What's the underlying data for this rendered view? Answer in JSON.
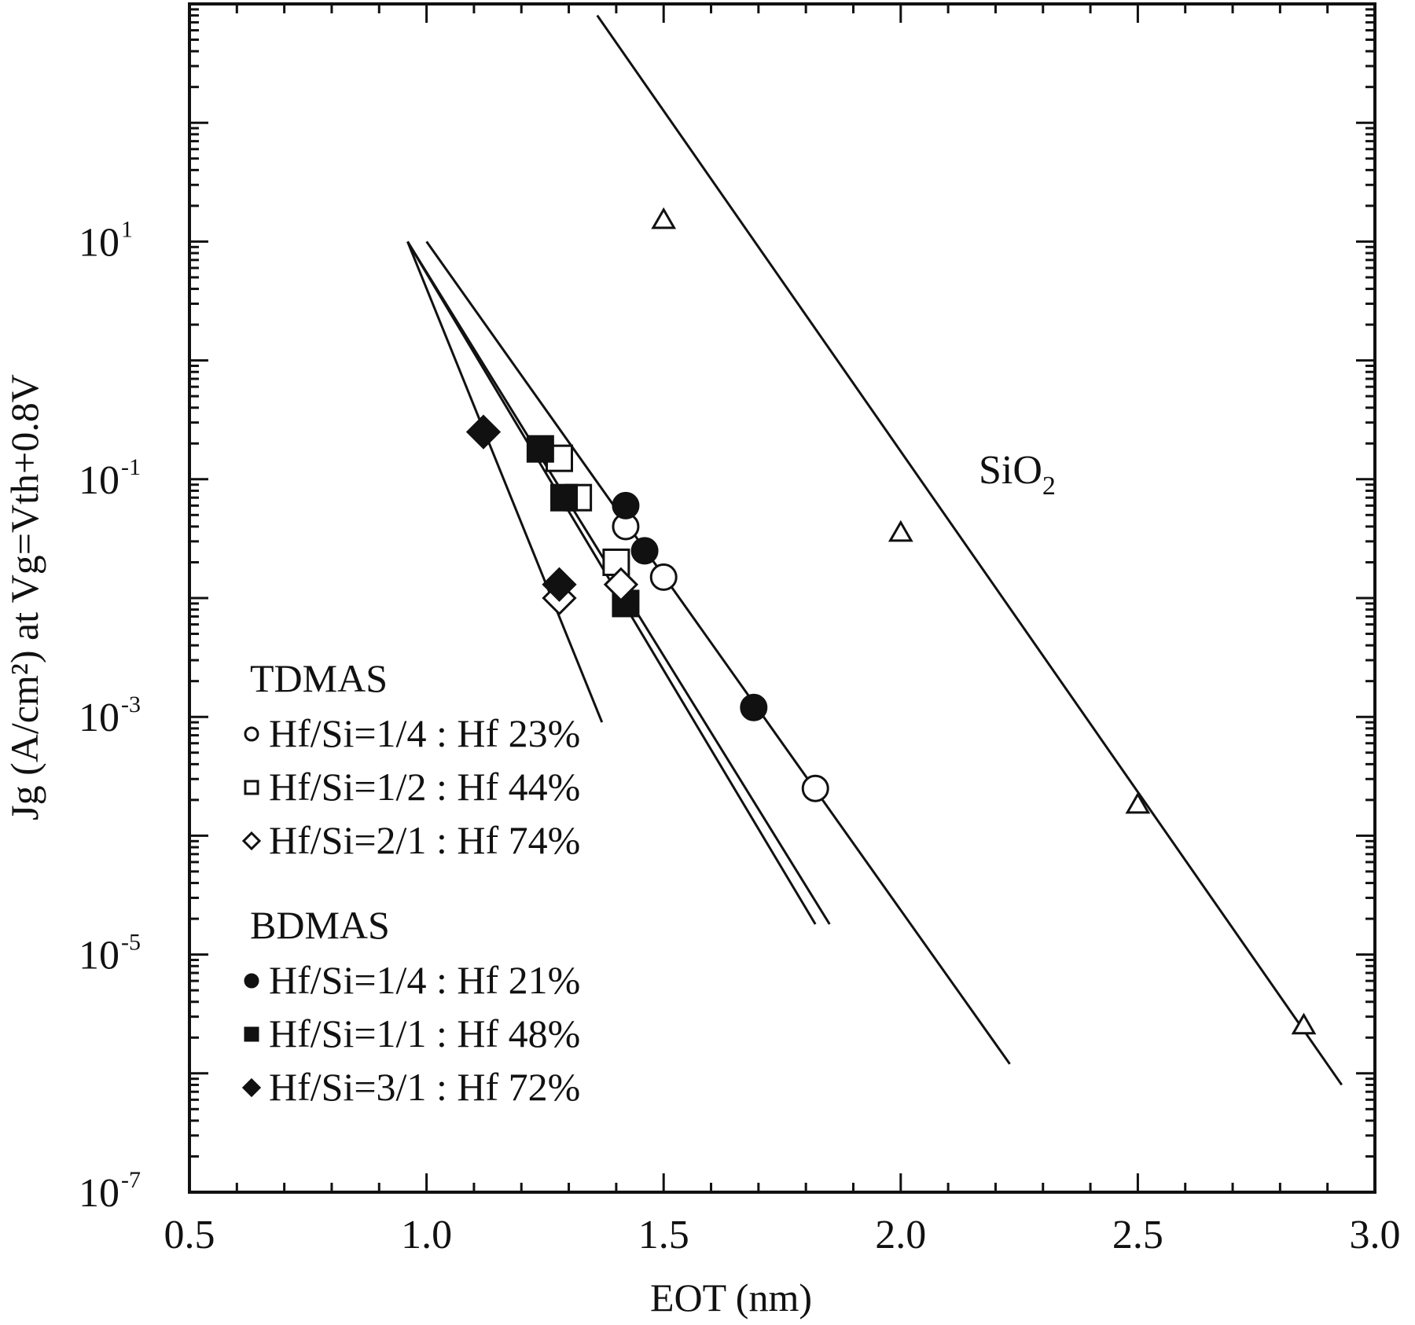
{
  "chart_data": {
    "type": "scatter",
    "xlabel": "EOT (nm)",
    "ylabel": "Jg (A/cm²) at Vg=Vth+0.8V",
    "xlim": [
      0.5,
      3.0
    ],
    "ylim": [
      1e-07,
      1000
    ],
    "yscale": "log",
    "x_ticks": [
      "0.5",
      "1.0",
      "1.5",
      "2.0",
      "2.5",
      "3.0"
    ],
    "y_ticks": [
      {
        "base": "10",
        "exp": "1",
        "value": 10
      },
      {
        "base": "10",
        "exp": "-1",
        "value": 0.1
      },
      {
        "base": "10",
        "exp": "-3",
        "value": 0.001
      },
      {
        "base": "10",
        "exp": "-5",
        "value": 1e-05
      },
      {
        "base": "10",
        "exp": "-7",
        "value": 1e-07
      }
    ],
    "annotation": {
      "text": "SiO",
      "subscript": "2"
    },
    "legend": {
      "groups": [
        {
          "title": "TDMAS",
          "items": [
            {
              "label": "Hf/Si=1/4 : Hf 23%",
              "marker": "circle-open"
            },
            {
              "label": "Hf/Si=1/2 : Hf 44%",
              "marker": "square-open"
            },
            {
              "label": "Hf/Si=2/1 : Hf 74%",
              "marker": "diamond-open"
            }
          ]
        },
        {
          "title": "BDMAS",
          "items": [
            {
              "label": "Hf/Si=1/4 : Hf 21%",
              "marker": "circle-filled"
            },
            {
              "label": "Hf/Si=1/1 : Hf 48%",
              "marker": "square-filled"
            },
            {
              "label": "Hf/Si=3/1 : Hf 72%",
              "marker": "diamond-filled"
            }
          ]
        }
      ]
    },
    "series": [
      {
        "marker": "triangle-open",
        "x": [
          1.5,
          2.0,
          2.5,
          2.85
        ],
        "y": [
          15,
          0.035,
          0.00018,
          2.5e-06
        ]
      },
      {
        "marker": "circle-open",
        "x": [
          1.42,
          1.5,
          1.82
        ],
        "y": [
          0.04,
          0.015,
          0.00025
        ]
      },
      {
        "marker": "circle-filled",
        "x": [
          1.42,
          1.46,
          1.69
        ],
        "y": [
          0.06,
          0.025,
          0.0012
        ]
      },
      {
        "marker": "square-open",
        "x": [
          1.28,
          1.32,
          1.4
        ],
        "y": [
          0.15,
          0.07,
          0.02
        ]
      },
      {
        "marker": "square-filled",
        "x": [
          1.24,
          1.29,
          1.42
        ],
        "y": [
          0.18,
          0.07,
          0.009
        ]
      },
      {
        "marker": "diamond-open",
        "x": [
          1.28,
          1.41
        ],
        "y": [
          0.01,
          0.013
        ]
      },
      {
        "marker": "diamond-filled",
        "x": [
          1.12,
          1.28
        ],
        "y": [
          0.25,
          0.013
        ]
      }
    ],
    "fit_lines": [
      {
        "x": [
          1.36,
          2.93
        ],
        "y": [
          800,
          8e-07
        ]
      },
      {
        "x": [
          1.0,
          2.23
        ],
        "y": [
          10,
          1.2e-06
        ]
      },
      {
        "x": [
          0.96,
          1.85
        ],
        "y": [
          10,
          1.8e-05
        ]
      },
      {
        "x": [
          0.96,
          1.82
        ],
        "y": [
          10,
          1.8e-05
        ]
      },
      {
        "x": [
          0.96,
          1.37
        ],
        "y": [
          10,
          0.0009
        ]
      }
    ]
  }
}
